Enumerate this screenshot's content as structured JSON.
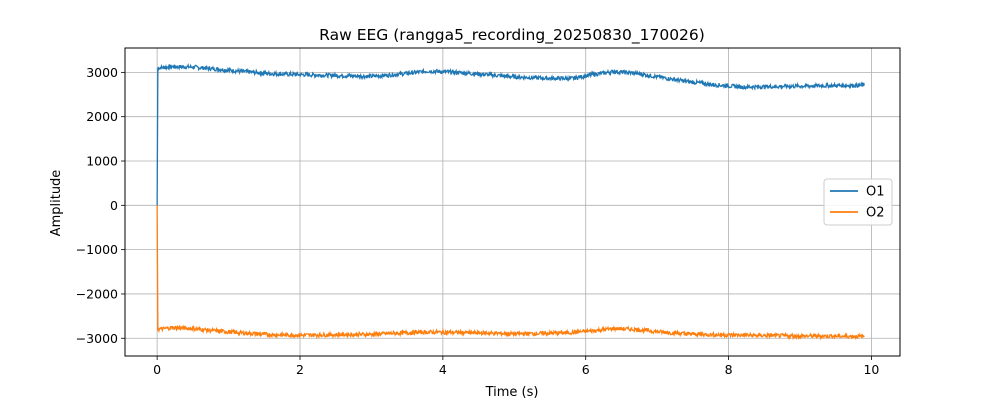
{
  "chart_data": {
    "type": "line",
    "title": "Raw EEG (rangga5_recording_20250830_170026)",
    "xlabel": "Time (s)",
    "ylabel": "Amplitude",
    "xlim": [
      -0.45,
      10.4
    ],
    "ylim": [
      -3400,
      3550
    ],
    "xticks": [
      0,
      2,
      4,
      6,
      8,
      10
    ],
    "yticks": [
      3000,
      2000,
      1000,
      0,
      -1000,
      -2000,
      -3000
    ],
    "xtick_labels": [
      "0",
      "2",
      "4",
      "6",
      "8",
      "10"
    ],
    "ytick_labels": [
      "3000",
      "2000",
      "1000",
      "0",
      "−1000",
      "−2000",
      "−3000"
    ],
    "grid": true,
    "legend_position": "center-right",
    "series": [
      {
        "name": "O1",
        "color": "#1f77b4",
        "x": [
          0,
          0.01,
          0.2,
          0.5,
          0.8,
          1.2,
          1.6,
          2.0,
          2.5,
          3.0,
          3.4,
          3.8,
          4.2,
          4.6,
          5.0,
          5.4,
          5.8,
          6.1,
          6.4,
          6.7,
          7.0,
          7.4,
          7.8,
          8.2,
          8.6,
          9.0,
          9.4,
          9.9
        ],
        "y": [
          0,
          3100,
          3130,
          3120,
          3080,
          3020,
          2970,
          2950,
          2930,
          2910,
          2960,
          3030,
          3000,
          2950,
          2900,
          2870,
          2860,
          2950,
          3020,
          2980,
          2900,
          2800,
          2720,
          2670,
          2680,
          2690,
          2700,
          2710
        ]
      },
      {
        "name": "O2",
        "color": "#ff7f0e",
        "x": [
          0,
          0.01,
          0.2,
          0.5,
          0.8,
          1.2,
          1.6,
          2.0,
          2.5,
          3.0,
          3.4,
          3.8,
          4.2,
          4.6,
          5.0,
          5.4,
          5.8,
          6.1,
          6.4,
          6.7,
          7.0,
          7.4,
          7.8,
          8.2,
          8.6,
          9.0,
          9.4,
          9.9
        ],
        "y": [
          0,
          -2800,
          -2760,
          -2780,
          -2830,
          -2880,
          -2920,
          -2930,
          -2920,
          -2910,
          -2880,
          -2860,
          -2870,
          -2880,
          -2900,
          -2890,
          -2870,
          -2830,
          -2780,
          -2800,
          -2850,
          -2900,
          -2920,
          -2930,
          -2940,
          -2950,
          -2950,
          -2960
        ]
      }
    ]
  }
}
